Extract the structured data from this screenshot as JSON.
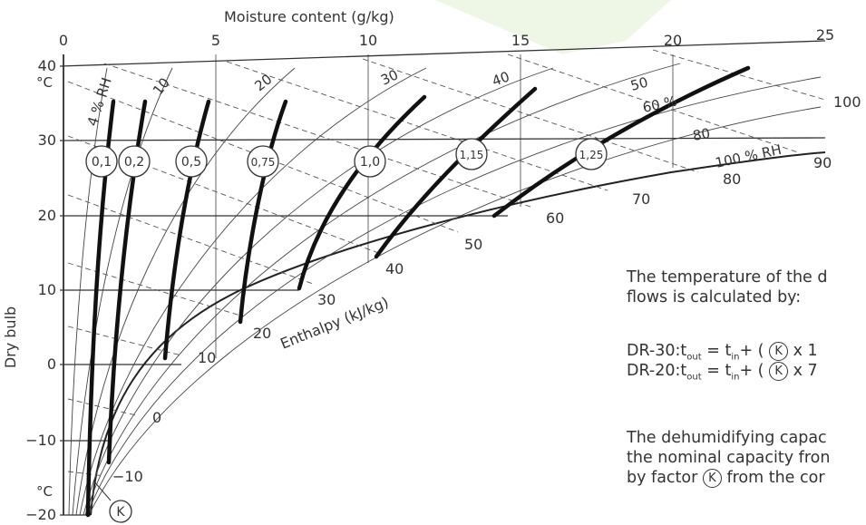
{
  "top_axis": {
    "title": "Moisture content (g/kg)",
    "ticks": [
      "0",
      "5",
      "10",
      "15",
      "20",
      "25"
    ]
  },
  "left_axis": {
    "title": "Dry bulb",
    "ticks": [
      "40",
      "30",
      "20",
      "10",
      "0",
      "−10",
      "−20"
    ],
    "unit_top": "°C",
    "unit_bottom": "°C"
  },
  "enthalpy": {
    "title": "Enthalpy (kJ/kg)",
    "labels": [
      "−10",
      "0",
      "10",
      "20",
      "30",
      "40",
      "50",
      "60",
      "70",
      "80",
      "90",
      "100"
    ]
  },
  "rh_labels": [
    "4 % RH",
    "10",
    "20",
    "30",
    "40",
    "50",
    "60 %",
    "80",
    "100 % RH"
  ],
  "factors": [
    "0,1",
    "0,2",
    "0,5",
    "0,75",
    "1,0",
    "1,15",
    "1,25"
  ],
  "k_symbol": "K",
  "text": {
    "line1": "The temperature of the d",
    "line2": "flows is calculated by:",
    "eq1_prefix": "DR-30:t",
    "eq1_sub1": "out",
    "eq1_mid": " = t",
    "eq1_sub2": "in",
    "eq1_after": "+ ( ",
    "eq1_tail": " x 1",
    "eq2_prefix": "DR-20:t",
    "eq2_sub1": "out",
    "eq2_mid": " = t",
    "eq2_sub2": "in",
    "eq2_after": "+ ( ",
    "eq2_tail": " x 7",
    "line3": "The dehumidifying capac",
    "line4": "the nominal capacity fron",
    "line5_prefix": "by factor ",
    "line5_suffix": " from the cor"
  }
}
